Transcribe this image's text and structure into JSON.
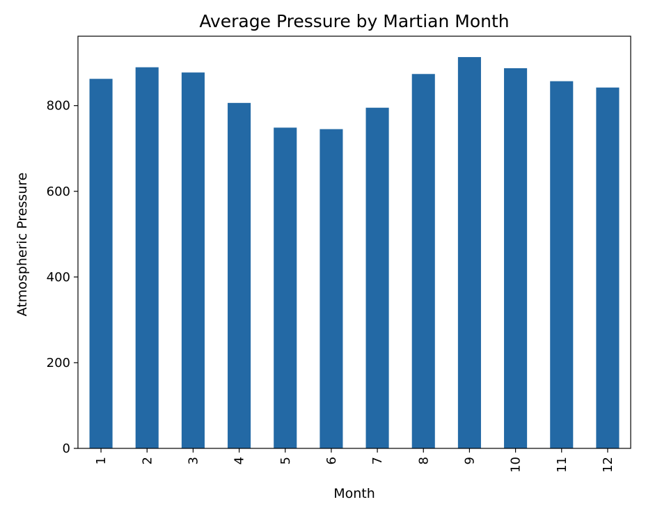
{
  "chart_data": {
    "type": "bar",
    "title": "Average Pressure by Martian Month",
    "xlabel": "Month",
    "ylabel": "Atmospheric Pressure",
    "categories": [
      "1",
      "2",
      "3",
      "4",
      "5",
      "6",
      "7",
      "8",
      "9",
      "10",
      "11",
      "12"
    ],
    "values": [
      862.5,
      889.5,
      877.3,
      806.3,
      748.6,
      745.1,
      795.1,
      873.8,
      913.3,
      887.3,
      857.0,
      842.2
    ],
    "ylim": [
      0,
      962
    ],
    "yticks": [
      0,
      200,
      400,
      600,
      800
    ],
    "bar_color": "#2369a5",
    "grid": false,
    "legend": "none",
    "x_tick_rotation": "vertical"
  }
}
